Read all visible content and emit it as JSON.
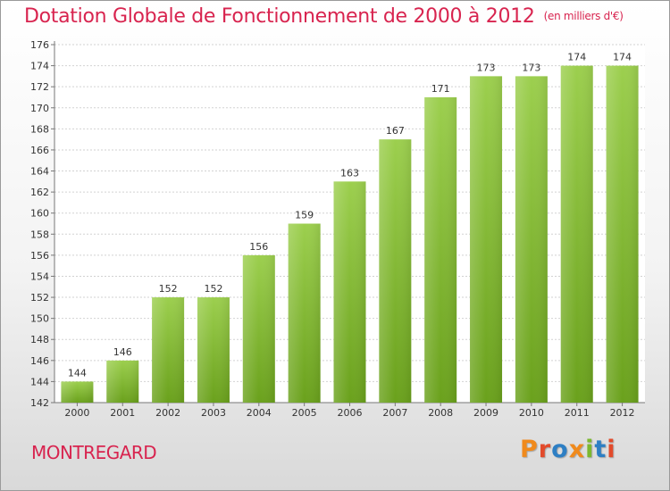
{
  "header": {
    "title": "Dotation Globale de Fonctionnement de 2000 à 2012",
    "unit": "(en milliers d'€)"
  },
  "footer": {
    "town": "MONTREGARD",
    "logo": "Proxiti",
    "logo_colors": [
      "#f08a1c",
      "#e24a2b",
      "#2e7fc4",
      "#f08a1c",
      "#7cb82f",
      "#2e7fc4",
      "#e24a2b"
    ]
  },
  "chart_data": {
    "type": "bar",
    "categories": [
      "2000",
      "2001",
      "2002",
      "2003",
      "2004",
      "2005",
      "2006",
      "2007",
      "2008",
      "2009",
      "2010",
      "2011",
      "2012"
    ],
    "values": [
      144,
      146,
      152,
      152,
      156,
      159,
      163,
      167,
      171,
      173,
      173,
      174,
      174
    ],
    "ylim": [
      142,
      176
    ],
    "yticks": [
      142,
      144,
      146,
      148,
      150,
      152,
      154,
      156,
      158,
      160,
      162,
      164,
      166,
      168,
      170,
      172,
      174,
      176
    ],
    "grid": true,
    "bar_color_top": "#9ccf4e",
    "bar_color_bottom": "#6aa11c"
  }
}
